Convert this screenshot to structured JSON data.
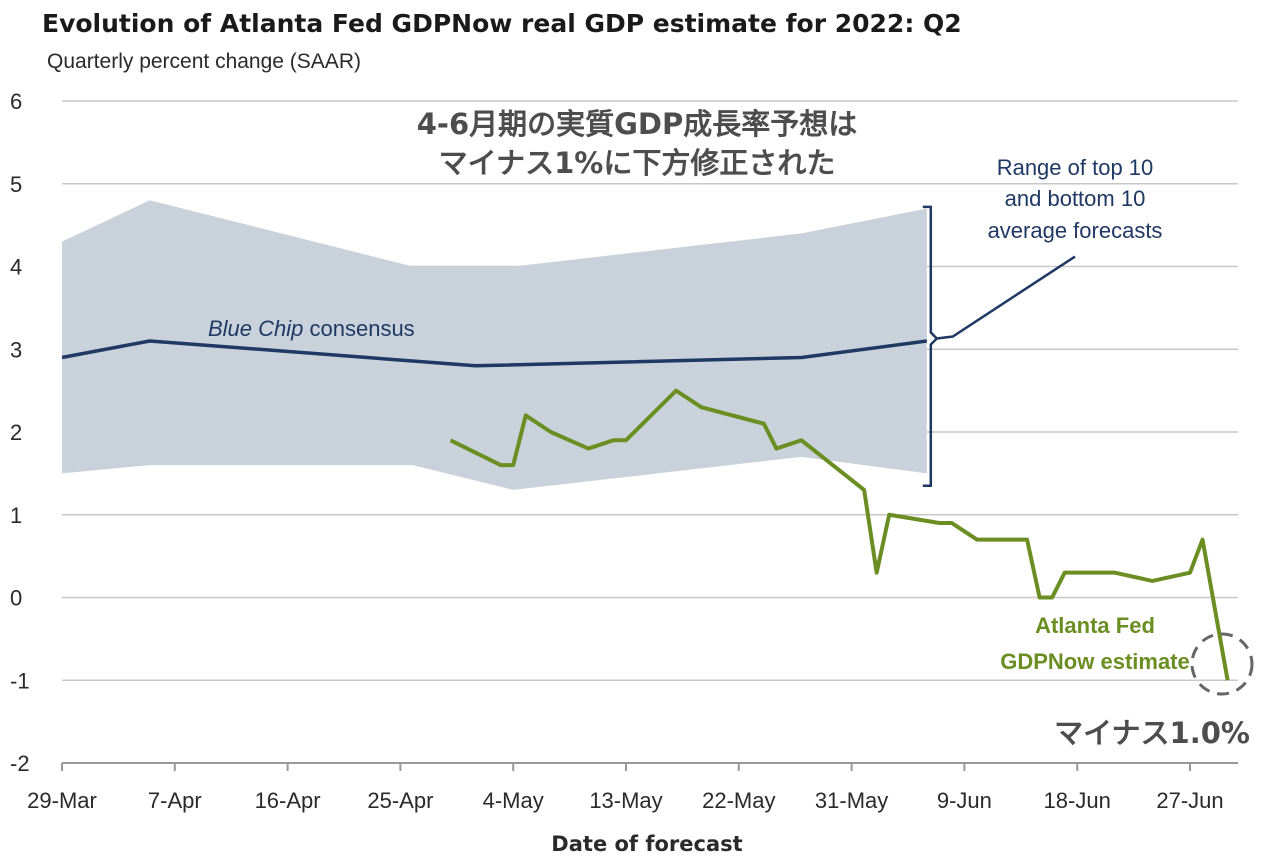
{
  "chart_data": {
    "type": "line",
    "title": "Evolution of Atlanta Fed GDPNow real GDP estimate for 2022: Q2",
    "subtitle": "Quarterly percent change (SAAR)",
    "xlabel": "Date of forecast",
    "ylabel": "",
    "ylim": [
      -2,
      6
    ],
    "yticks": [
      "6",
      "5",
      "4",
      "3",
      "2",
      "1",
      "0",
      "-1",
      "-2"
    ],
    "xticks": [
      "29-Mar",
      "7-Apr",
      "16-Apr",
      "25-Apr",
      "4-May",
      "13-May",
      "22-May",
      "31-May",
      "9-Jun",
      "18-Jun",
      "27-Jun"
    ],
    "grid": "horizontal",
    "x_start": "2022-03-29",
    "series": [
      {
        "name": "Blue Chip consensus",
        "color": "#1f3864",
        "x": [
          "2022-03-29",
          "2022-04-05",
          "2022-05-01",
          "2022-05-27",
          "2022-06-06"
        ],
        "y": [
          2.9,
          3.1,
          2.8,
          2.9,
          3.1
        ]
      },
      {
        "name": "Atlanta Fed GDPNow estimate",
        "color": "#6b8e23",
        "x": [
          "2022-04-29",
          "2022-05-03",
          "2022-05-04",
          "2022-05-05",
          "2022-05-07",
          "2022-05-10",
          "2022-05-12",
          "2022-05-13",
          "2022-05-17",
          "2022-05-19",
          "2022-05-24",
          "2022-05-25",
          "2022-05-26",
          "2022-05-27",
          "2022-06-01",
          "2022-06-02",
          "2022-06-03",
          "2022-06-07",
          "2022-06-08",
          "2022-06-10",
          "2022-06-14",
          "2022-06-15",
          "2022-06-16",
          "2022-06-17",
          "2022-06-21",
          "2022-06-24",
          "2022-06-27",
          "2022-06-28",
          "2022-06-30"
        ],
        "y": [
          1.9,
          1.6,
          1.6,
          2.2,
          2.0,
          1.8,
          1.9,
          1.9,
          2.5,
          2.3,
          2.1,
          1.8,
          1.85,
          1.9,
          1.3,
          0.3,
          1.0,
          0.9,
          0.9,
          0.7,
          0.7,
          0.0,
          0.0,
          0.3,
          0.3,
          0.2,
          0.3,
          0.7,
          -1.0
        ]
      }
    ],
    "band": {
      "name": "Range of top 10 and bottom 10 average forecasts",
      "color": "#c9d2da",
      "x": [
        "2022-03-29",
        "2022-04-05",
        "2022-04-26",
        "2022-05-04",
        "2022-05-27",
        "2022-06-06"
      ],
      "upper": [
        4.3,
        4.8,
        4.0,
        4.0,
        4.4,
        4.7
      ],
      "lower": [
        1.5,
        1.6,
        1.6,
        1.3,
        1.7,
        1.5
      ]
    },
    "annotations": {
      "jp_line1": "4-6月期の実質GDP成長率予想は",
      "jp_line2": "マイナス1%に下方修正された",
      "range_line1": "Range of top 10",
      "range_line2": "and bottom 10",
      "range_line3": "average forecasts",
      "bluechip_italic": "Blue Chip",
      "bluechip_rest": " consensus",
      "gdpnow_line1": "Atlanta Fed",
      "gdpnow_line2": "GDPNow estimate",
      "final_value": "マイナス1.0%"
    }
  }
}
